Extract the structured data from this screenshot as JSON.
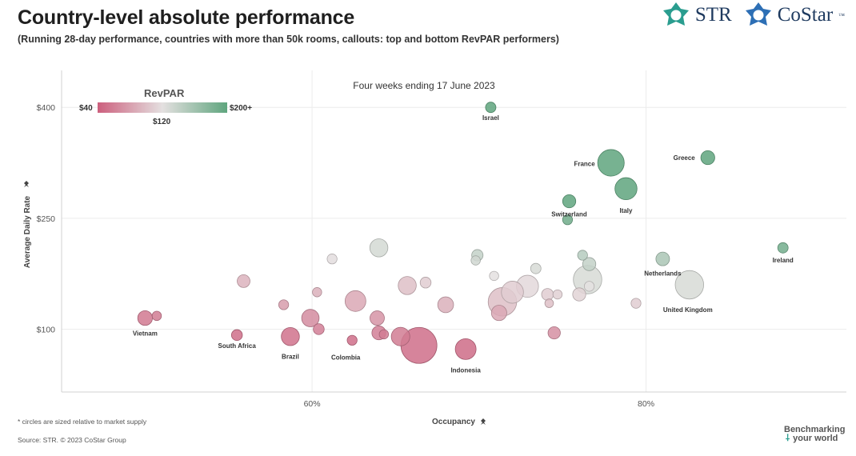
{
  "header": {
    "title": "Country-level absolute performance",
    "subtitle": "(Running 28-day performance, countries with more than 50k rooms, callouts: top and bottom RevPAR performers)"
  },
  "logos": {
    "str": "STR",
    "costar": "CoStar",
    "costar_tm": "™"
  },
  "footer": {
    "note": "* circles are sized relative to market supply",
    "source": "Source: STR. © 2023 CoStar Group",
    "tagline_1": "Benchmarking",
    "tagline_2": "your world"
  },
  "legend": {
    "title": "RevPAR",
    "min_label": "$40",
    "mid_label": "$120",
    "max_label": "$200+",
    "min_color": "#cc5f7d",
    "mid_color": "#e4e0e0",
    "max_color": "#5fa57e"
  },
  "chart_data": {
    "type": "scatter",
    "title": "Four weeks ending 17 June 2023",
    "xlabel": "Occupancy",
    "ylabel": "Average Daily Rate",
    "xlim": [
      45,
      92
    ],
    "ylim": [
      15,
      450
    ],
    "x_ticks": [
      60,
      80
    ],
    "x_tick_labels": [
      "60%",
      "80%"
    ],
    "y_ticks": [
      100,
      250,
      400
    ],
    "y_tick_labels": [
      "$100",
      "$250",
      "$400"
    ],
    "gridlines": true,
    "size_note": "circle size relative to market supply",
    "points": [
      {
        "label": "Israel",
        "x": 70.7,
        "y": 400,
        "size": 1.0,
        "revpar": 200
      },
      {
        "label": "Greece",
        "x": 83.7,
        "y": 332,
        "size": 1.8,
        "revpar": 200
      },
      {
        "label": "France",
        "x": 77.9,
        "y": 325,
        "size": 6.5,
        "revpar": 200
      },
      {
        "label": "Italy",
        "x": 78.8,
        "y": 290,
        "size": 4.5,
        "revpar": 200
      },
      {
        "label": "Switzerland",
        "x": 75.4,
        "y": 273,
        "size": 1.6,
        "revpar": 200
      },
      {
        "label": "",
        "x": 75.3,
        "y": 248,
        "size": 0.9,
        "revpar": 190
      },
      {
        "label": "Ireland",
        "x": 88.2,
        "y": 210,
        "size": 1.0,
        "revpar": 188
      },
      {
        "label": "Netherlands",
        "x": 81.0,
        "y": 195,
        "size": 1.7,
        "revpar": 155
      },
      {
        "label": "United Kingdom",
        "x": 82.6,
        "y": 160,
        "size": 7.5,
        "revpar": 128
      },
      {
        "label": "",
        "x": 79.4,
        "y": 135,
        "size": 0.9,
        "revpar": 108
      },
      {
        "label": "",
        "x": 76.5,
        "y": 167,
        "size": 7.5,
        "revpar": 128
      },
      {
        "label": "",
        "x": 76.6,
        "y": 188,
        "size": 1.6,
        "revpar": 140
      },
      {
        "label": "",
        "x": 76.2,
        "y": 200,
        "size": 0.9,
        "revpar": 148
      },
      {
        "label": "",
        "x": 76.6,
        "y": 158,
        "size": 0.9,
        "revpar": 120
      },
      {
        "label": "",
        "x": 76.0,
        "y": 147,
        "size": 1.6,
        "revpar": 112
      },
      {
        "label": "",
        "x": 74.7,
        "y": 147,
        "size": 0.8,
        "revpar": 110
      },
      {
        "label": "",
        "x": 74.1,
        "y": 147,
        "size": 1.3,
        "revpar": 108
      },
      {
        "label": "",
        "x": 74.2,
        "y": 135,
        "size": 0.7,
        "revpar": 100
      },
      {
        "label": "",
        "x": 73.4,
        "y": 182,
        "size": 1.0,
        "revpar": 128
      },
      {
        "label": "",
        "x": 72.9,
        "y": 158,
        "size": 4.5,
        "revpar": 115
      },
      {
        "label": "",
        "x": 72.0,
        "y": 150,
        "size": 4.5,
        "revpar": 108
      },
      {
        "label": "",
        "x": 71.4,
        "y": 137,
        "size": 7.5,
        "revpar": 100
      },
      {
        "label": "",
        "x": 71.2,
        "y": 122,
        "size": 2.2,
        "revpar": 85
      },
      {
        "label": "",
        "x": 70.9,
        "y": 172,
        "size": 0.8,
        "revpar": 120
      },
      {
        "label": "",
        "x": 69.9,
        "y": 200,
        "size": 1.2,
        "revpar": 140
      },
      {
        "label": "",
        "x": 69.8,
        "y": 193,
        "size": 0.8,
        "revpar": 132
      },
      {
        "label": "",
        "x": 74.5,
        "y": 95,
        "size": 1.4,
        "revpar": 70
      },
      {
        "label": "Indonesia",
        "x": 69.2,
        "y": 73,
        "size": 4.0,
        "revpar": 48
      },
      {
        "label": "",
        "x": 68.0,
        "y": 133,
        "size": 2.3,
        "revpar": 90
      },
      {
        "label": "",
        "x": 66.8,
        "y": 163,
        "size": 1.1,
        "revpar": 108
      },
      {
        "label": "",
        "x": 65.7,
        "y": 159,
        "size": 3.0,
        "revpar": 100
      },
      {
        "label": "",
        "x": 66.4,
        "y": 78,
        "size": 12.0,
        "revpar": 50
      },
      {
        "label": "",
        "x": 65.3,
        "y": 90,
        "size": 3.2,
        "revpar": 58
      },
      {
        "label": "",
        "x": 64.0,
        "y": 210,
        "size": 3.0,
        "revpar": 130
      },
      {
        "label": "",
        "x": 63.9,
        "y": 115,
        "size": 1.9,
        "revpar": 73
      },
      {
        "label": "",
        "x": 64.0,
        "y": 95,
        "size": 1.8,
        "revpar": 60
      },
      {
        "label": "",
        "x": 64.3,
        "y": 93,
        "size": 0.8,
        "revpar": 58
      },
      {
        "label": "",
        "x": 62.6,
        "y": 138,
        "size": 4.0,
        "revpar": 85
      },
      {
        "label": "Colombia",
        "x": 62.4,
        "y": 85,
        "size": 0.9,
        "revpar": 50
      },
      {
        "label": "",
        "x": 61.2,
        "y": 195,
        "size": 0.9,
        "revpar": 118
      },
      {
        "label": "",
        "x": 60.3,
        "y": 150,
        "size": 0.8,
        "revpar": 90
      },
      {
        "label": "",
        "x": 59.9,
        "y": 115,
        "size": 2.8,
        "revpar": 68
      },
      {
        "label": "",
        "x": 60.4,
        "y": 100,
        "size": 1.1,
        "revpar": 60
      },
      {
        "label": "",
        "x": 58.3,
        "y": 133,
        "size": 0.9,
        "revpar": 78
      },
      {
        "label": "Brazil",
        "x": 58.7,
        "y": 90,
        "size": 3.0,
        "revpar": 52
      },
      {
        "label": "",
        "x": 55.9,
        "y": 165,
        "size": 1.5,
        "revpar": 92
      },
      {
        "label": "South Africa",
        "x": 55.5,
        "y": 92,
        "size": 1.1,
        "revpar": 50
      },
      {
        "label": "Vietnam",
        "x": 50.0,
        "y": 115,
        "size": 2.0,
        "revpar": 56
      },
      {
        "label": "",
        "x": 50.7,
        "y": 118,
        "size": 0.8,
        "revpar": 58
      }
    ]
  }
}
